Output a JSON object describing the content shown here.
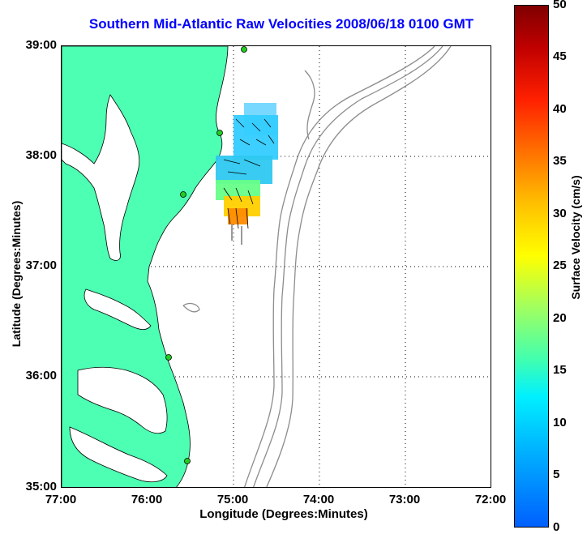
{
  "title": "Southern Mid-Atlantic Raw Velocities 2008/06/18 0100 GMT",
  "axes": {
    "xlabel": "Longitude (Degrees:Minutes)",
    "ylabel": "Latitude (Degrees:Minutes)",
    "x_ticks": [
      "77:00",
      "76:00",
      "75:00",
      "74:00",
      "73:00",
      "72:00"
    ],
    "y_ticks": [
      "39:00",
      "38:00",
      "37:00",
      "36:00",
      "35:00"
    ]
  },
  "colorbar": {
    "label": "Surface Velocity (cm/s)",
    "ticks": [
      "50",
      "45",
      "40",
      "35",
      "30",
      "25",
      "20",
      "15",
      "10",
      "5",
      "0"
    ]
  },
  "colors": {
    "title": "#0000ff",
    "land": "#4dffb3",
    "bathymetry": "#888888",
    "station": "#22cc22"
  }
}
